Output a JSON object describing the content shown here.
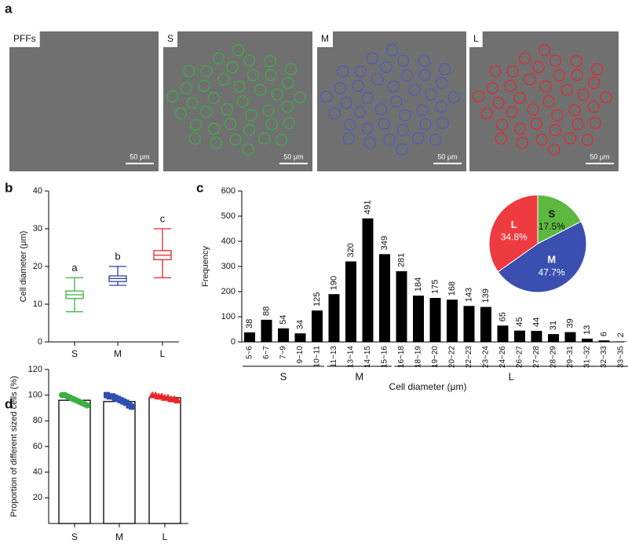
{
  "panel_labels": [
    "a",
    "b",
    "c",
    "d"
  ],
  "images": [
    {
      "label": "PFFs",
      "scale": "50 μm"
    },
    {
      "label": "S",
      "scale": "50 μm",
      "color": "#3cb043"
    },
    {
      "label": "M",
      "scale": "50 μm",
      "color": "#4a5bc4"
    },
    {
      "label": "L",
      "scale": "50 μm",
      "color": "#e8262a"
    }
  ],
  "chart_data": [
    {
      "type": "box",
      "ylabel": "Cell diameter (μm)",
      "categories": [
        "S",
        "M",
        "L"
      ],
      "colors": [
        "#3cb043",
        "#2e3fa3",
        "#e8262a"
      ],
      "min": [
        8,
        15,
        17
      ],
      "q1": [
        11.5,
        16,
        21.8
      ],
      "median": [
        12.5,
        16.8,
        23
      ],
      "q3": [
        13.5,
        17.5,
        24.2
      ],
      "max": [
        17,
        20,
        30
      ],
      "annotations": [
        "a",
        "b",
        "c"
      ],
      "ylim": [
        0,
        40
      ],
      "yticks": [
        0,
        10,
        20,
        30,
        40
      ]
    },
    {
      "type": "bar",
      "ylabel": "Frequency",
      "xlabel": "Cell diameter (μm)",
      "color": "#000000",
      "categories": [
        "5~6",
        "6~7",
        "7~9",
        "9~10",
        "10~11",
        "11~13",
        "13~14",
        "14~15",
        "15~16",
        "16~18",
        "18~19",
        "19~20",
        "20~22",
        "22~23",
        "23~24",
        "24~26",
        "26~27",
        "27~28",
        "28~29",
        "29~31",
        "31~32",
        "32~33",
        "33~35"
      ],
      "values": [
        38,
        88,
        54,
        34,
        125,
        190,
        320,
        491,
        349,
        281,
        184,
        175,
        168,
        143,
        139,
        65,
        45,
        44,
        31,
        39,
        13,
        6,
        2
      ],
      "groups": [
        {
          "label": "S",
          "from": "5~6",
          "to": "10~11"
        },
        {
          "label": "M",
          "from": "11~13",
          "to": "15~16"
        },
        {
          "label": "L",
          "from": "16~18",
          "to": "33~35"
        }
      ],
      "ylim": [
        0,
        600
      ],
      "yticks": [
        0,
        100,
        200,
        300,
        400,
        500,
        600
      ]
    },
    {
      "type": "pie",
      "categories": [
        "S",
        "M",
        "L"
      ],
      "values": [
        17.5,
        47.7,
        34.8
      ],
      "value_labels": [
        "17.5%",
        "47.7%",
        "34.8%"
      ],
      "colors": [
        "#5cb83f",
        "#3a4fb0",
        "#ee3b3f"
      ]
    },
    {
      "type": "barscatter",
      "ylabel": "Proportion of  different sized cells (%)",
      "categories": [
        "S",
        "M",
        "L"
      ],
      "values": [
        96,
        95,
        98
      ],
      "colors": [
        "#3cb043",
        "#2e4fb0",
        "#e8262a"
      ],
      "markers": [
        "circle",
        "square",
        "triangle"
      ],
      "points": [
        [
          100,
          100,
          99,
          98,
          97,
          96,
          95,
          94,
          93,
          92
        ],
        [
          100,
          99,
          99,
          98,
          97,
          96,
          95,
          94,
          92,
          91
        ],
        [
          100,
          100,
          99,
          99,
          98,
          98,
          97,
          97,
          96
        ]
      ],
      "ylim": [
        0,
        120
      ],
      "yticks": [
        20,
        40,
        60,
        80,
        100,
        120
      ]
    }
  ]
}
